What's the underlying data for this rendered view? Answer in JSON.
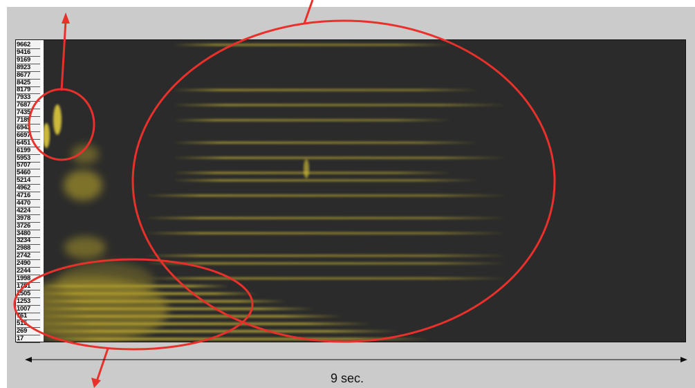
{
  "frequency_labels": [
    "9662",
    "9416",
    "9169",
    "8923",
    "8677",
    "8425",
    "8179",
    "7933",
    "7687",
    "7435",
    "7189",
    "6943",
    "6697",
    "6451",
    "6199",
    "5953",
    "5707",
    "5460",
    "5214",
    "4962",
    "4716",
    "4470",
    "4224",
    "3978",
    "3726",
    "3480",
    "3234",
    "2988",
    "2742",
    "2490",
    "2244",
    "1998",
    "1751",
    "1505",
    "1253",
    "1007",
    "761",
    "515",
    "269",
    "17"
  ],
  "time_axis": {
    "label": "9 sec."
  },
  "colors": {
    "background": "#cbcbcb",
    "spectrogram_bg": "#2b2b2b",
    "energy": "#e8d23a",
    "annotation": "#e8312a"
  },
  "harmonic_bands_hz": [
    9662,
    8179,
    7687,
    7189,
    6451,
    5953,
    5460,
    5214,
    4716,
    3978,
    3480,
    2742,
    2490,
    1998,
    1751,
    1505,
    1253,
    1007,
    761,
    515,
    269,
    17
  ]
}
